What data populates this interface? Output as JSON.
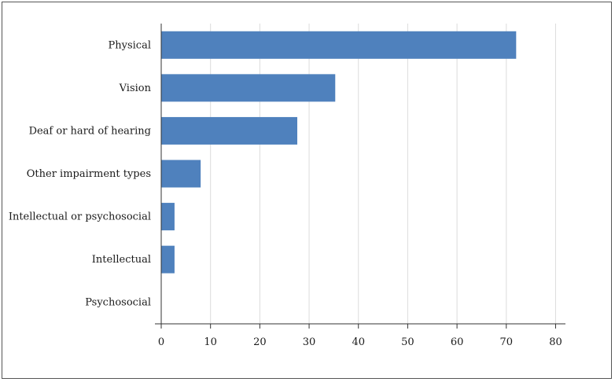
{
  "chart_data": {
    "type": "bar",
    "orientation": "horizontal",
    "categories": [
      "Physical",
      "Vision",
      "Deaf or hard of hearing",
      "Other impairment types",
      "Intellectual or psychosocial",
      "Intellectual",
      "Psychosocial"
    ],
    "values": [
      72,
      35.3,
      27.6,
      8,
      2.7,
      2.7,
      0
    ],
    "xlim": [
      0,
      82
    ],
    "xticks": [
      "0",
      "10",
      "20",
      "30",
      "40",
      "50",
      "60",
      "70",
      "80"
    ],
    "grid": "vertical",
    "bar_color": "#4f81bd",
    "grid_color": "#dcdcdc",
    "axis_color": "#333333",
    "title": "",
    "xlabel": "",
    "ylabel": ""
  }
}
